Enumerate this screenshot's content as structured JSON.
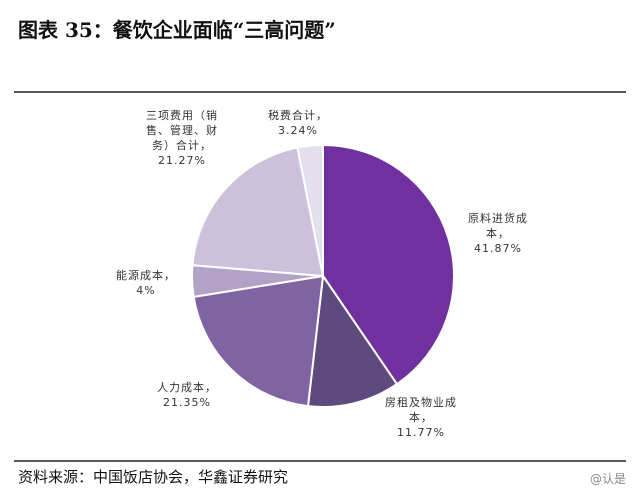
{
  "chart_data": {
    "type": "pie",
    "title": "图表 35：餐饮企业面临“三高问题”",
    "categories": [
      "原料进货成本，",
      "房租及物业成本，",
      "人力成本，",
      "能源成本，",
      "三项费用（销售、管理、财务）合计，",
      "税费合计，"
    ],
    "values": [
      41.87,
      11.77,
      21.35,
      4,
      21.27,
      3.24
    ],
    "value_labels": [
      "41.87%",
      "11.77%",
      "21.35%",
      "4%",
      "21.27%",
      "3.24%"
    ],
    "colors": [
      "#7030a0",
      "#5e4a7c",
      "#8064a2",
      "#b3a2c7",
      "#ccc0da",
      "#e4dfec"
    ],
    "source": "资料来源：中国饭店协会，华鑫证券研究",
    "watermark": "@认是"
  }
}
